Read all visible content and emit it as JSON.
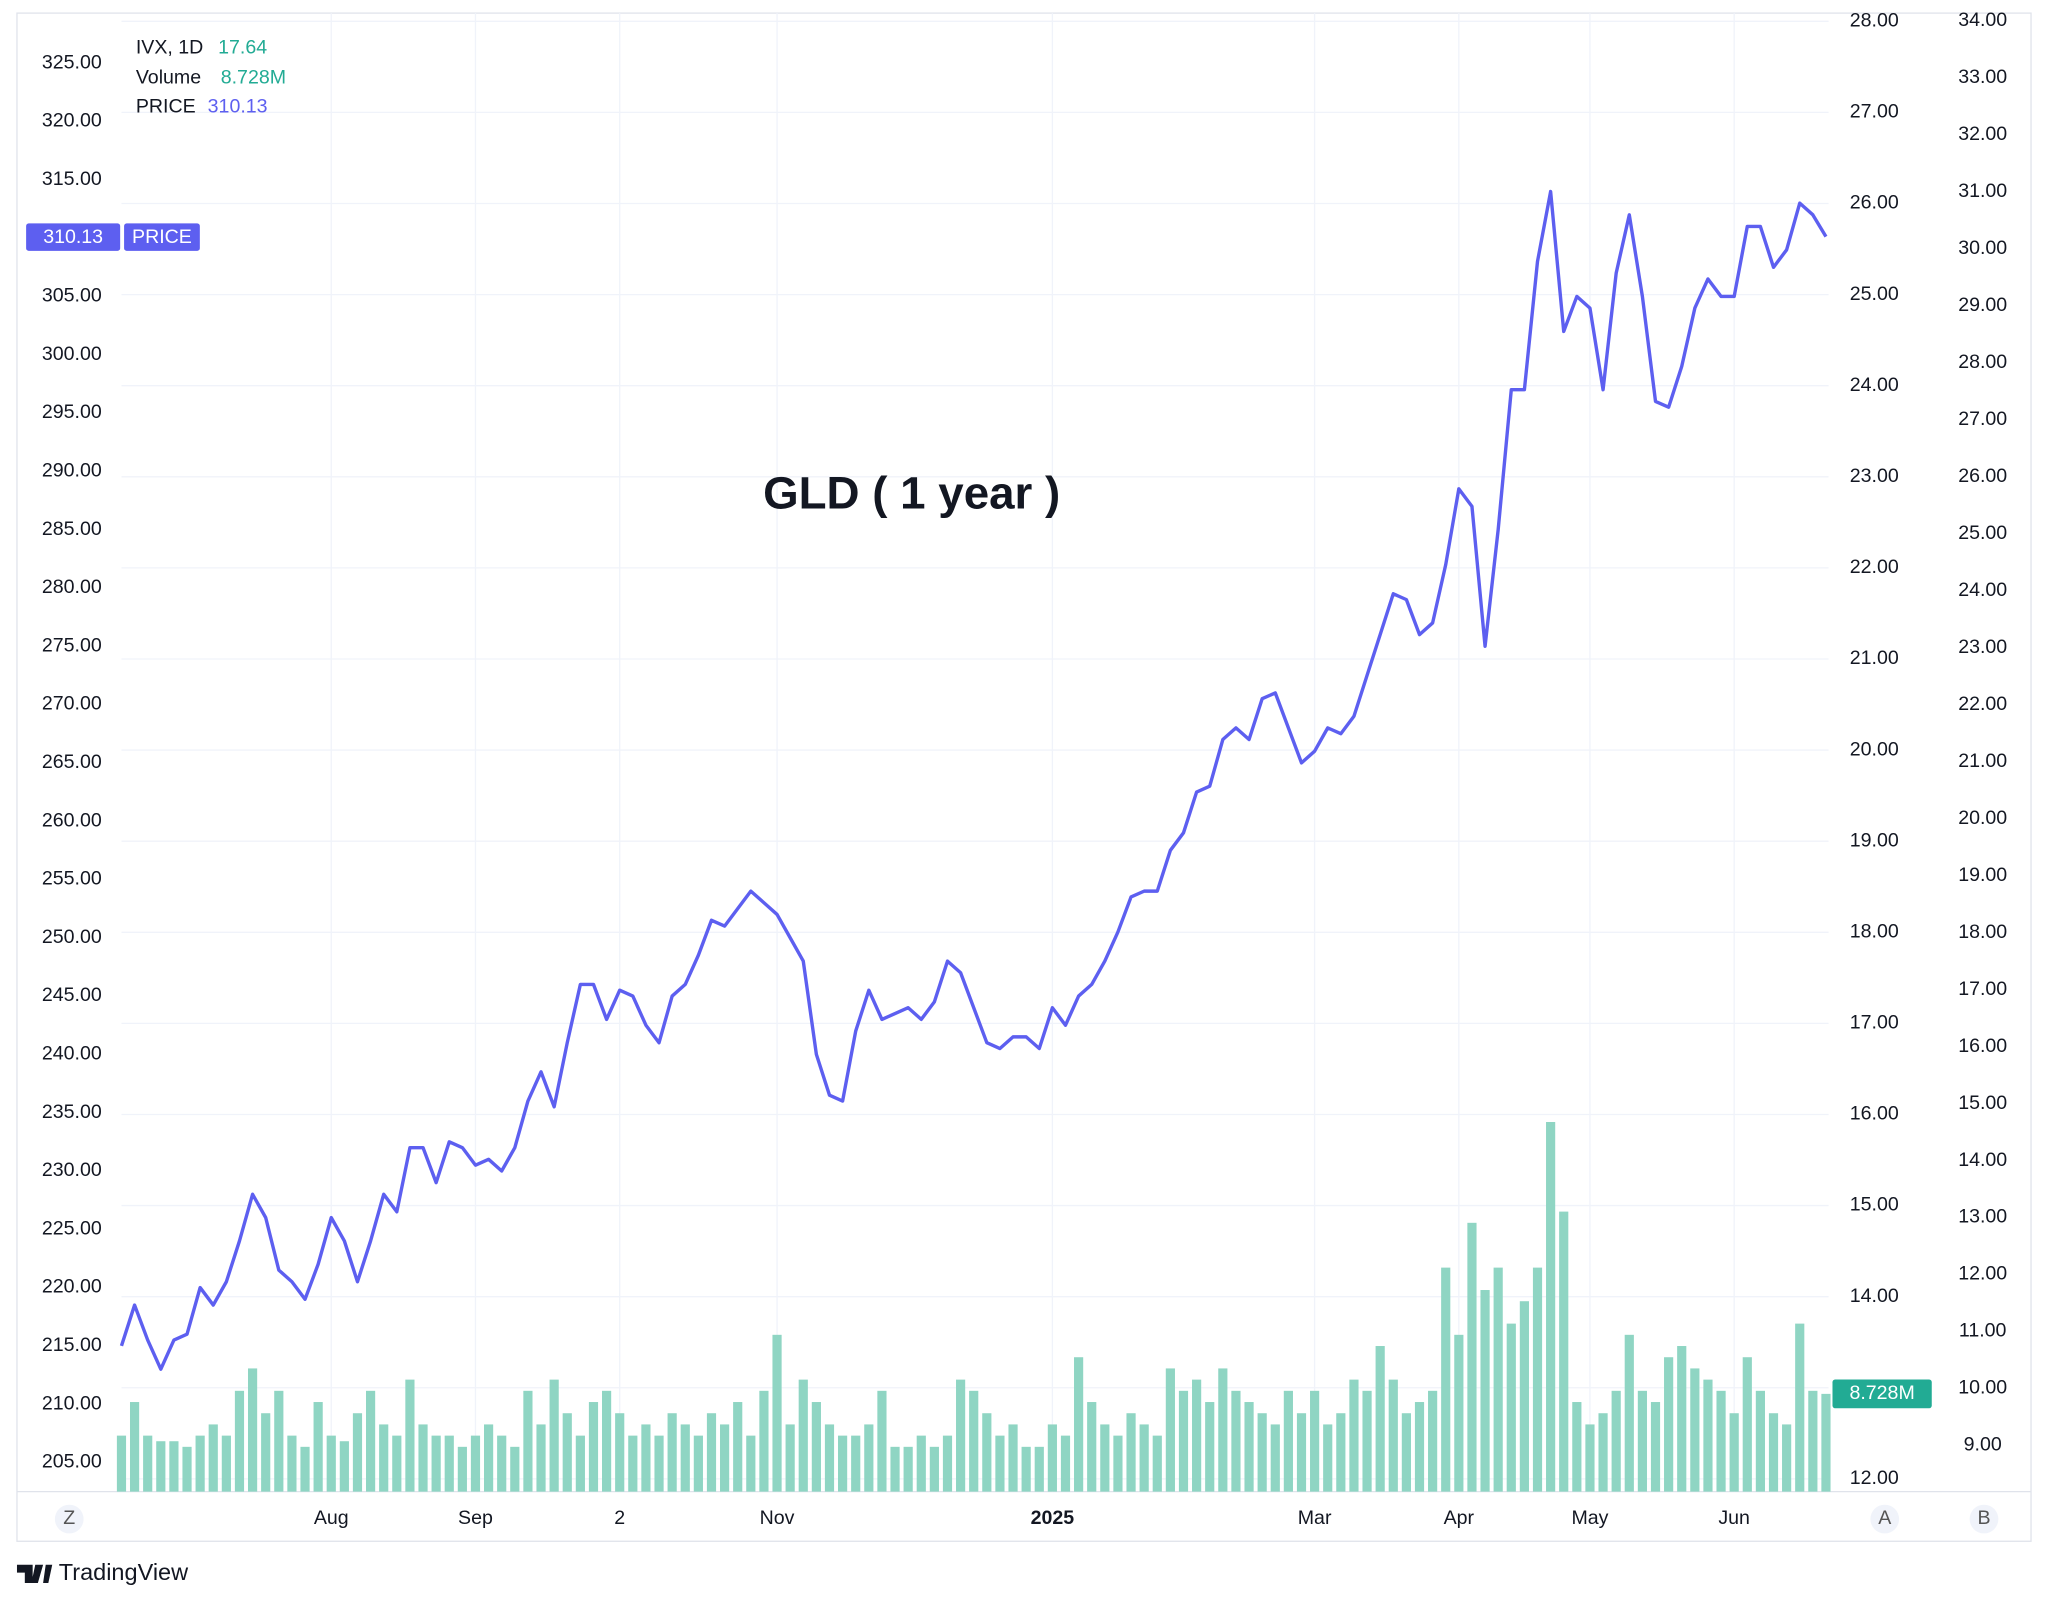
{
  "chart_data": {
    "type": "line",
    "title": "GLD ( 1 year )",
    "categories": [
      null,
      null,
      null,
      null,
      null,
      null,
      null,
      null,
      null,
      null,
      null,
      null,
      null,
      null,
      null,
      null,
      "Aug",
      null,
      null,
      null,
      null,
      null,
      null,
      null,
      null,
      null,
      null,
      "Sep",
      null,
      null,
      null,
      null,
      null,
      null,
      null,
      null,
      null,
      null,
      "2",
      null,
      null,
      null,
      null,
      null,
      null,
      null,
      null,
      null,
      null,
      null,
      "Nov",
      null,
      null,
      null,
      null,
      null,
      null,
      null,
      null,
      null,
      null,
      null,
      null,
      null,
      null,
      null,
      null,
      null,
      null,
      null,
      null,
      "2025",
      null,
      null,
      null,
      null,
      null,
      null,
      null,
      null,
      null,
      null,
      null,
      null,
      null,
      null,
      null,
      null,
      null,
      null,
      null,
      "Mar",
      null,
      null,
      null,
      null,
      null,
      null,
      null,
      null,
      null,
      null,
      "Apr",
      null,
      null,
      null,
      null,
      null,
      null,
      null,
      null,
      null,
      "May",
      null,
      null,
      null,
      null,
      null,
      null,
      null,
      null,
      null,
      null,
      "Jun",
      null,
      null,
      null,
      null,
      null,
      null,
      null
    ],
    "bold_category": "2025",
    "series": [
      {
        "name": "PRICE",
        "color": "#5d5ff0",
        "values": [
          215,
          218.5,
          215.5,
          213,
          215.5,
          216,
          220,
          218.5,
          220.5,
          224,
          228,
          226,
          221.5,
          220.5,
          219,
          222,
          226,
          224,
          220.5,
          224,
          228,
          226.5,
          232,
          232,
          229,
          232.5,
          232,
          230.5,
          231,
          230,
          232,
          236,
          238.5,
          235.5,
          241,
          246,
          246,
          243,
          245.5,
          245,
          242.5,
          241,
          245,
          246,
          248.5,
          251.5,
          251,
          252.5,
          254,
          253,
          252,
          250,
          248,
          240,
          236.5,
          236,
          242,
          245.5,
          243,
          243.5,
          244,
          243,
          244.5,
          248,
          247,
          244,
          241,
          240.5,
          241.5,
          241.5,
          240.5,
          244,
          242.5,
          245,
          246,
          248,
          250.5,
          253.5,
          254,
          254,
          257.5,
          259,
          262.5,
          263,
          267,
          268,
          267,
          270.5,
          271,
          268,
          265,
          266,
          268,
          267.5,
          269,
          272.5,
          276,
          279.5,
          279,
          276,
          277,
          282,
          288.5,
          287,
          275,
          285,
          297,
          297,
          308,
          314,
          302,
          305,
          304,
          297,
          307,
          312,
          305,
          296,
          295.5,
          299,
          304,
          306.5,
          305,
          305,
          311,
          311,
          307.5,
          309,
          313,
          312,
          310.13
        ]
      },
      {
        "name": "Volume",
        "color": "#8fd5c3",
        "axis": "v",
        "values": [
          5,
          8,
          5,
          4.5,
          4.5,
          4,
          5,
          6,
          5,
          9,
          11,
          7,
          9,
          5,
          4,
          8,
          5,
          4.5,
          7,
          9,
          6,
          5,
          10,
          6,
          5,
          5,
          4,
          5,
          6,
          5,
          4,
          9,
          6,
          10,
          7,
          5,
          8,
          9,
          7,
          5,
          6,
          5,
          7,
          6,
          5,
          7,
          6,
          8,
          5,
          9,
          14,
          6,
          10,
          8,
          6,
          5,
          5,
          6,
          9,
          4,
          4,
          5,
          4,
          5,
          10,
          9,
          7,
          5,
          6,
          4,
          4,
          6,
          5,
          12,
          8,
          6,
          5,
          7,
          6,
          5,
          11,
          9,
          10,
          8,
          11,
          9,
          8,
          7,
          6,
          9,
          7,
          9,
          6,
          7,
          10,
          9,
          13,
          10,
          7,
          8,
          9,
          20,
          14,
          24,
          18,
          20,
          15,
          17,
          20,
          33,
          25,
          8,
          6,
          7,
          9,
          14,
          9,
          8,
          12,
          13,
          11,
          10,
          9,
          7,
          12,
          9,
          7,
          6,
          15,
          9,
          8.728
        ],
        "value_labels": {
          "130": "8.728M"
        },
        "label_color": "#22ab94"
      }
    ],
    "indicator": {
      "name": "IVX, 1D",
      "value": 17.64,
      "color": "#22ab94"
    },
    "ylim": [
      202.5,
      329.3
    ],
    "yticks": [
      {
        "value": 205,
        "label": "205.00"
      },
      {
        "value": 210,
        "label": "210.00"
      },
      {
        "value": 215,
        "label": "215.00"
      },
      {
        "value": 220,
        "label": "220.00"
      },
      {
        "value": 225,
        "label": "225.00"
      },
      {
        "value": 230,
        "label": "230.00"
      },
      {
        "value": 235,
        "label": "235.00"
      },
      {
        "value": 240,
        "label": "240.00"
      },
      {
        "value": 245,
        "label": "245.00"
      },
      {
        "value": 250,
        "label": "250.00"
      },
      {
        "value": 255,
        "label": "255.00"
      },
      {
        "value": 260,
        "label": "260.00"
      },
      {
        "value": 265,
        "label": "265.00"
      },
      {
        "value": 270,
        "label": "270.00"
      },
      {
        "value": 275,
        "label": "275.00"
      },
      {
        "value": 280,
        "label": "280.00"
      },
      {
        "value": 285,
        "label": "285.00"
      },
      {
        "value": 290,
        "label": "290.00"
      },
      {
        "value": 295,
        "label": "295.00"
      },
      {
        "value": 300,
        "label": "300.00"
      },
      {
        "value": 305,
        "label": "305.00"
      },
      {
        "value": 310,
        "label": "310.00"
      },
      {
        "value": 315,
        "label": "315.00"
      },
      {
        "value": 320,
        "label": "320.00"
      },
      {
        "value": 325,
        "label": "325.00"
      }
    ],
    "y2lim": [
      11.86,
      28.09
    ],
    "y2ticks": [
      {
        "value": 12,
        "label": "12.00"
      },
      {
        "value": 13,
        "label": "13.00"
      },
      {
        "value": 14,
        "label": "14.00"
      },
      {
        "value": 15,
        "label": "15.00"
      },
      {
        "value": 16,
        "label": "16.00"
      },
      {
        "value": 17,
        "label": "17.00"
      },
      {
        "value": 18,
        "label": "18.00"
      },
      {
        "value": 19,
        "label": "19.00"
      },
      {
        "value": 20,
        "label": "20.00"
      },
      {
        "value": 21,
        "label": "21.00"
      },
      {
        "value": 22,
        "label": "22.00"
      },
      {
        "value": 23,
        "label": "23.00"
      },
      {
        "value": 24,
        "label": "24.00"
      },
      {
        "value": 25,
        "label": "25.00"
      },
      {
        "value": 26,
        "label": "26.00"
      },
      {
        "value": 27,
        "label": "27.00"
      },
      {
        "value": 28,
        "label": "28.00"
      }
    ],
    "y3lim": [
      8.19,
      34.14
    ],
    "y3ticks": [
      {
        "value": 9,
        "label": "9.00"
      },
      {
        "value": 10,
        "label": "10.00"
      },
      {
        "value": 11,
        "label": "11.00"
      },
      {
        "value": 12,
        "label": "12.00"
      },
      {
        "value": 13,
        "label": "13.00"
      },
      {
        "value": 14,
        "label": "14.00"
      },
      {
        "value": 15,
        "label": "15.00"
      },
      {
        "value": 16,
        "label": "16.00"
      },
      {
        "value": 17,
        "label": "17.00"
      },
      {
        "value": 18,
        "label": "18.00"
      },
      {
        "value": 19,
        "label": "19.00"
      },
      {
        "value": 20,
        "label": "20.00"
      },
      {
        "value": 21,
        "label": "21.00"
      },
      {
        "value": 22,
        "label": "22.00"
      },
      {
        "value": 23,
        "label": "23.00"
      },
      {
        "value": 24,
        "label": "24.00"
      },
      {
        "value": 25,
        "label": "25.00"
      },
      {
        "value": 26,
        "label": "26.00"
      },
      {
        "value": 27,
        "label": "27.00"
      },
      {
        "value": 28,
        "label": "28.00"
      },
      {
        "value": 29,
        "label": "29.00"
      },
      {
        "value": 30,
        "label": "30.00"
      },
      {
        "value": 31,
        "label": "31.00"
      },
      {
        "value": 32,
        "label": "32.00"
      },
      {
        "value": 33,
        "label": "33.00"
      },
      {
        "value": 34,
        "label": "34.00"
      }
    ],
    "vlim": [
      0,
      132
    ],
    "grid": true
  },
  "buttons": [
    "Z",
    "A",
    "B"
  ],
  "brand": "TradingView"
}
